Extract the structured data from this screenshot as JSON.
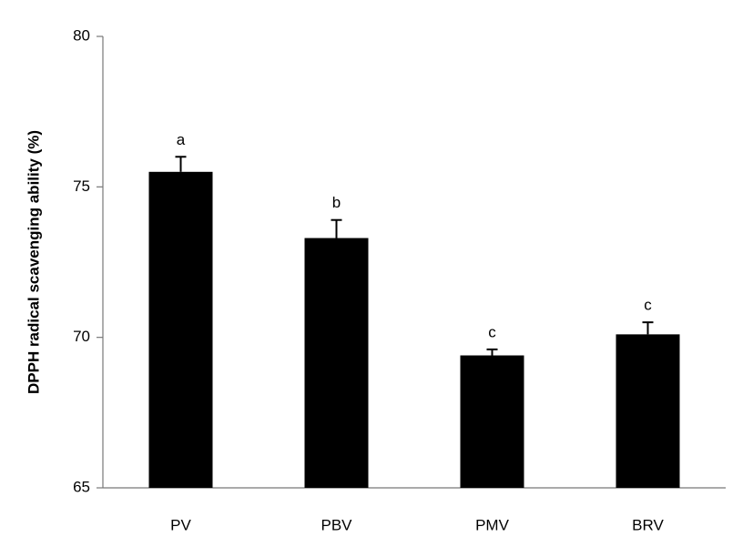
{
  "chart_data": {
    "type": "bar",
    "ylabel": "DPPH radical scavenging ability (%)",
    "categories": [
      "PV",
      "PBV",
      "PMV",
      "BRV"
    ],
    "values": [
      75.5,
      73.3,
      69.4,
      70.1
    ],
    "errors": [
      0.5,
      0.6,
      0.2,
      0.4
    ],
    "annotations": [
      "a",
      "b",
      "c",
      "c"
    ],
    "color": "#000000",
    "ylim": [
      65,
      80
    ],
    "yticks": [
      65,
      70,
      75,
      80
    ],
    "grid": false
  }
}
